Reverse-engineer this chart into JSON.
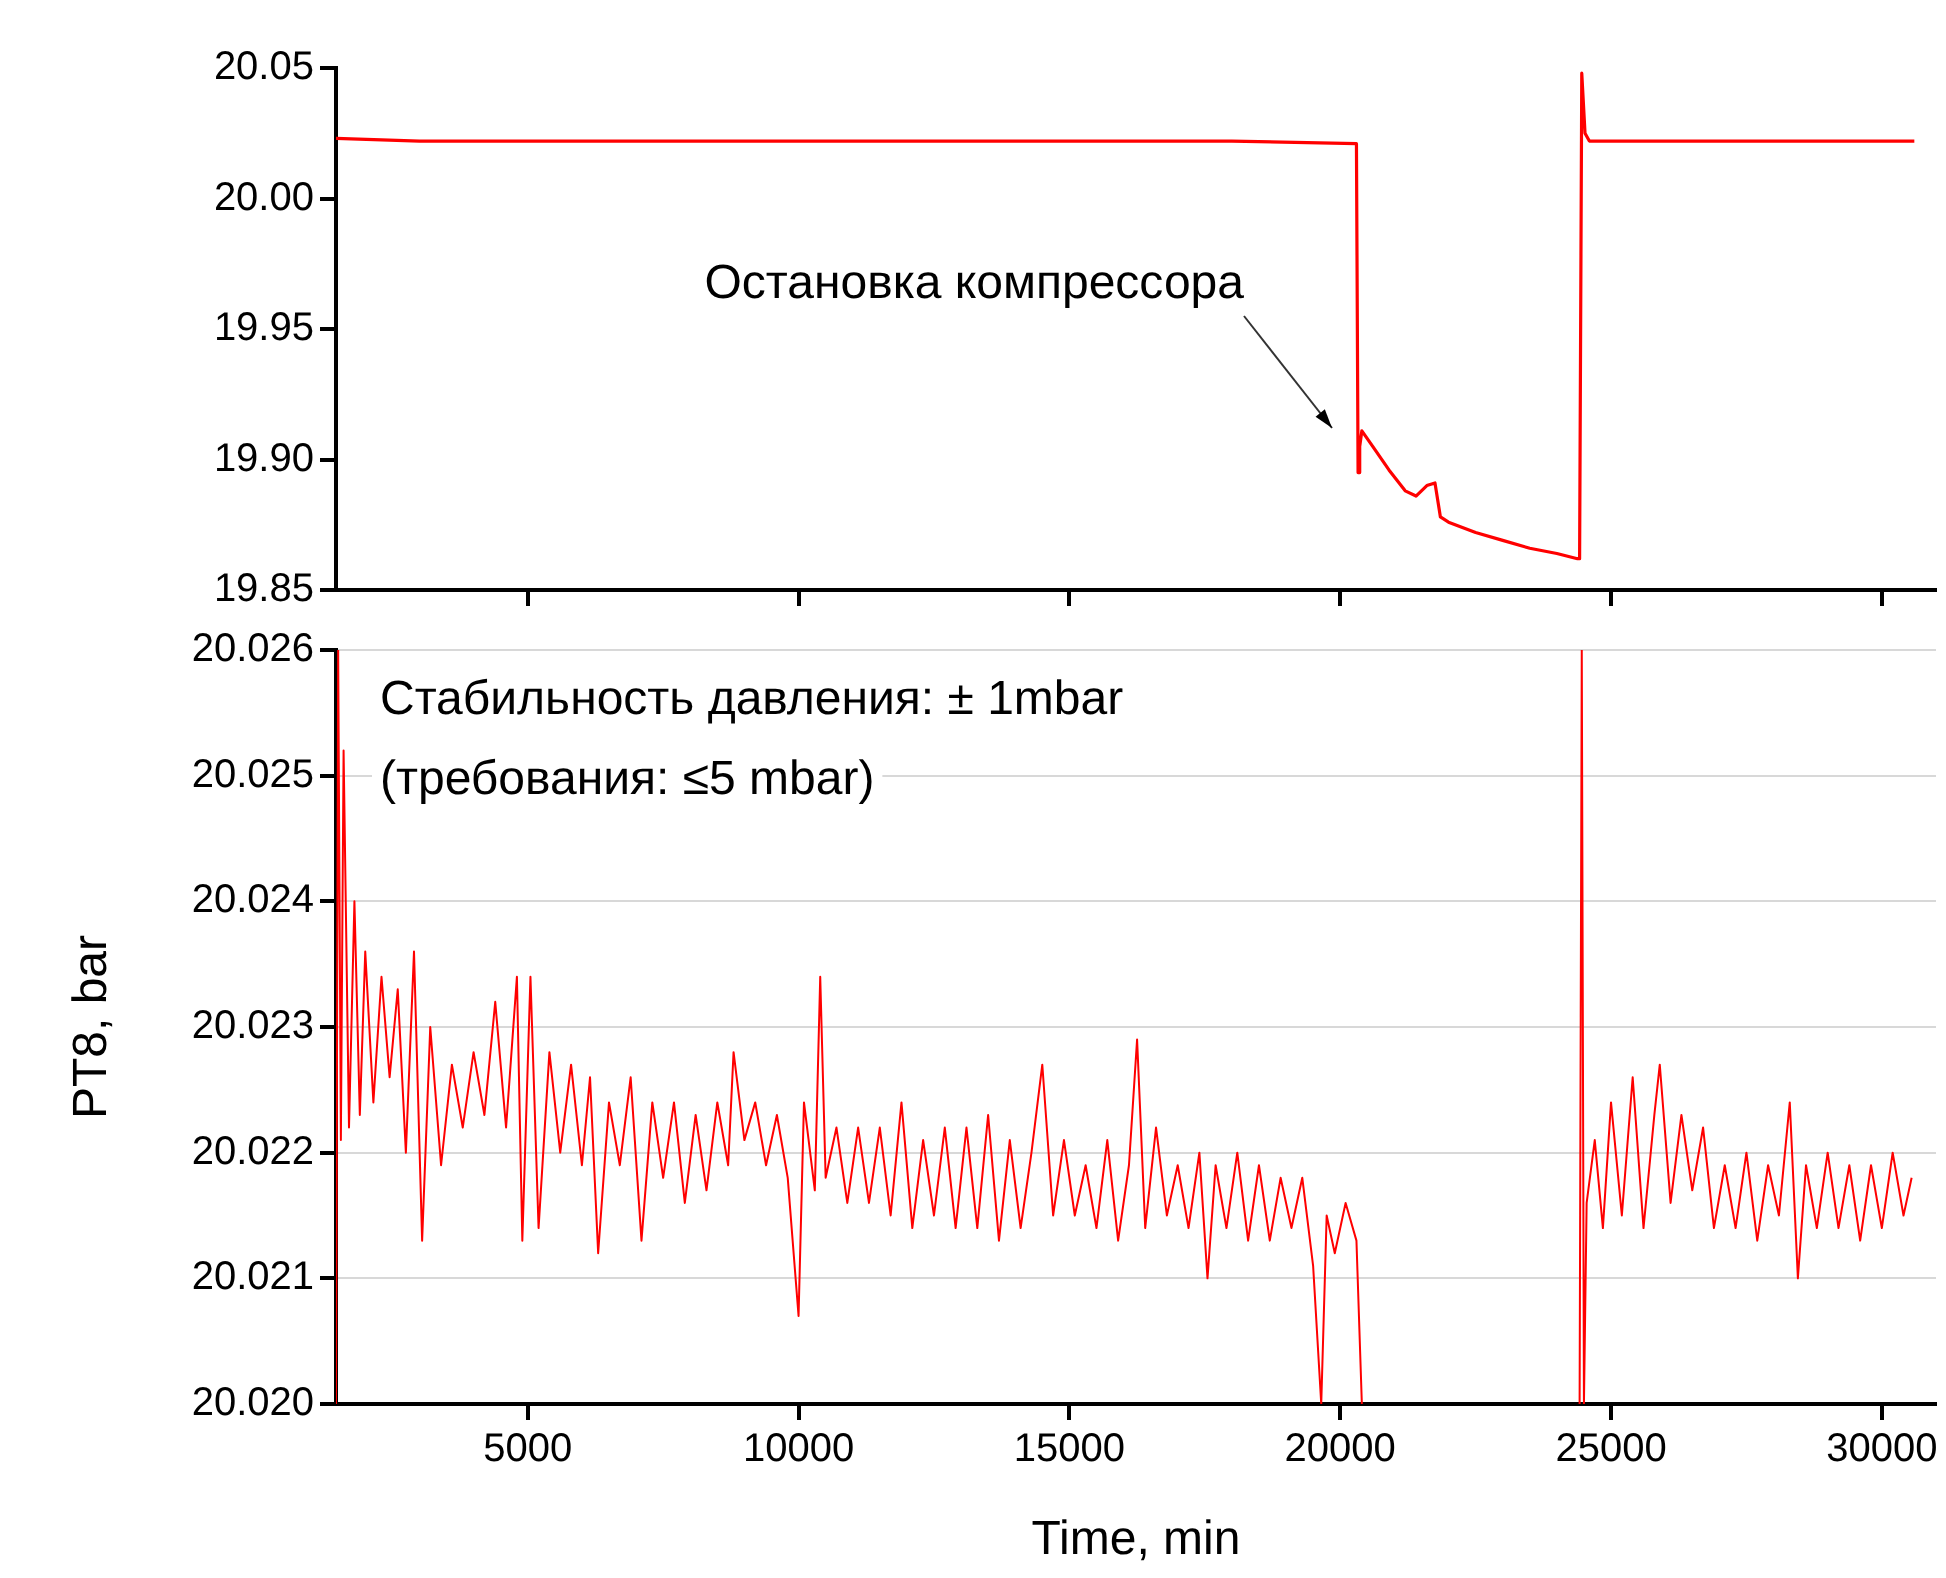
{
  "chart_data": [
    {
      "type": "line",
      "tick_labels": "y",
      "grid": false,
      "xlim": [
        1460,
        31000
      ],
      "xticks": [
        5000,
        10000,
        15000,
        20000,
        25000,
        30000
      ],
      "ylim": [
        19.85,
        20.05
      ],
      "yticks": [
        {
          "value": 19.85,
          "label": "19.85"
        },
        {
          "value": 19.9,
          "label": "19.90"
        },
        {
          "value": 19.95,
          "label": "19.95"
        },
        {
          "value": 20,
          "label": "20.00"
        },
        {
          "value": 20.05,
          "label": "20.05"
        }
      ],
      "annotations": [
        "Остановка компрессора"
      ],
      "series": [
        {
          "color": "#ff0000",
          "x": [
            1460,
            3000,
            6000,
            9000,
            12000,
            15000,
            18000,
            20300,
            20330,
            20360,
            20400,
            20600,
            20900,
            21200,
            21400,
            21600,
            21750,
            21850,
            22000,
            22500,
            23000,
            23500,
            24000,
            24380,
            24420,
            24460,
            24520,
            24600,
            25000,
            27000,
            30600
          ],
          "values": [
            20.023,
            20.022,
            20.022,
            20.022,
            20.022,
            20.022,
            20.022,
            20.021,
            19.895,
            19.905,
            19.911,
            19.905,
            19.896,
            19.888,
            19.886,
            19.89,
            19.891,
            19.878,
            19.876,
            19.872,
            19.869,
            19.866,
            19.864,
            19.862,
            19.862,
            20.048,
            20.025,
            20.022,
            20.022,
            20.022,
            20.022
          ]
        }
      ]
    },
    {
      "type": "line",
      "grid": "y",
      "xlabel": "Time, min",
      "ylabel": "PT8, bar",
      "xlim": [
        1460,
        31000
      ],
      "xticks": [
        5000,
        10000,
        15000,
        20000,
        25000,
        30000
      ],
      "ylim": [
        20.02,
        20.026
      ],
      "yticks": [
        {
          "value": 20.02,
          "label": "20.020"
        },
        20.021,
        20.022,
        20.023,
        20.024,
        20.025,
        20.026
      ],
      "annotations": [
        "Стабильность давления: ± 1mbar",
        "(требования: ≤5 mbar)"
      ],
      "series": [
        {
          "color": "#ff0000",
          "x": [
            1460,
            1500,
            1550,
            1600,
            1700,
            1800,
            1900,
            2000,
            2150,
            2300,
            2450,
            2600,
            2750,
            2900,
            3050,
            3200,
            3400,
            3600,
            3800,
            4000,
            4200,
            4400,
            4600,
            4800,
            4900,
            5050,
            5200,
            5400,
            5600,
            5800,
            6000,
            6150,
            6300,
            6500,
            6700,
            6900,
            7100,
            7300,
            7500,
            7700,
            7900,
            8100,
            8300,
            8500,
            8700,
            8800,
            9000,
            9200,
            9400,
            9600,
            9800,
            10000,
            10100,
            10300,
            10400,
            10500,
            10700,
            10900,
            11100,
            11300,
            11500,
            11700,
            11900,
            12100,
            12300,
            12500,
            12700,
            12900,
            13100,
            13300,
            13500,
            13700,
            13900,
            14100,
            14300,
            14500,
            14700,
            14900,
            15100,
            15300,
            15500,
            15700,
            15900,
            16100,
            16250,
            16400,
            16600,
            16800,
            17000,
            17200,
            17400,
            17550,
            17700,
            17900,
            18100,
            18300,
            18500,
            18700,
            18900,
            19100,
            19300,
            19500,
            19650,
            19750,
            19900,
            20100,
            20300,
            20400,
            22000,
            24420,
            24460,
            24500,
            24550,
            24700,
            24850,
            25000,
            25200,
            25400,
            25600,
            25800,
            25900,
            26100,
            26300,
            26500,
            26700,
            26900,
            27100,
            27300,
            27500,
            27700,
            27900,
            28100,
            28300,
            28450,
            28600,
            28800,
            29000,
            29200,
            29400,
            29600,
            29800,
            30000,
            30200,
            30400,
            30550
          ],
          "values": [
            20.02,
            20.026,
            20.0221,
            20.0252,
            20.0222,
            20.024,
            20.0223,
            20.0236,
            20.0224,
            20.0234,
            20.0226,
            20.0233,
            20.022,
            20.0236,
            20.0213,
            20.023,
            20.0219,
            20.0227,
            20.0222,
            20.0228,
            20.0223,
            20.0232,
            20.0222,
            20.0234,
            20.0213,
            20.0234,
            20.0214,
            20.0228,
            20.022,
            20.0227,
            20.0219,
            20.0226,
            20.0212,
            20.0224,
            20.0219,
            20.0226,
            20.0213,
            20.0224,
            20.0218,
            20.0224,
            20.0216,
            20.0223,
            20.0217,
            20.0224,
            20.0219,
            20.0228,
            20.0221,
            20.0224,
            20.0219,
            20.0223,
            20.0218,
            20.0207,
            20.0224,
            20.0217,
            20.0234,
            20.0218,
            20.0222,
            20.0216,
            20.0222,
            20.0216,
            20.0222,
            20.0215,
            20.0224,
            20.0214,
            20.0221,
            20.0215,
            20.0222,
            20.0214,
            20.0222,
            20.0214,
            20.0223,
            20.0213,
            20.0221,
            20.0214,
            20.022,
            20.0227,
            20.0215,
            20.0221,
            20.0215,
            20.0219,
            20.0214,
            20.0221,
            20.0213,
            20.0219,
            20.0229,
            20.0214,
            20.0222,
            20.0215,
            20.0219,
            20.0214,
            20.022,
            20.021,
            20.0219,
            20.0214,
            20.022,
            20.0213,
            20.0219,
            20.0213,
            20.0218,
            20.0214,
            20.0218,
            20.0211,
            20.02,
            20.0215,
            20.0212,
            20.0216,
            20.0213,
            20.02,
            null,
            20.02,
            20.026,
            20.02,
            20.0216,
            20.0221,
            20.0214,
            20.0224,
            20.0215,
            20.0226,
            20.0214,
            20.0223,
            20.0227,
            20.0216,
            20.0223,
            20.0217,
            20.0222,
            20.0214,
            20.0219,
            20.0214,
            20.022,
            20.0213,
            20.0219,
            20.0215,
            20.0224,
            20.021,
            20.0219,
            20.0214,
            20.022,
            20.0214,
            20.0219,
            20.0213,
            20.0219,
            20.0214,
            20.022,
            20.0215,
            20.0218
          ]
        }
      ]
    }
  ]
}
